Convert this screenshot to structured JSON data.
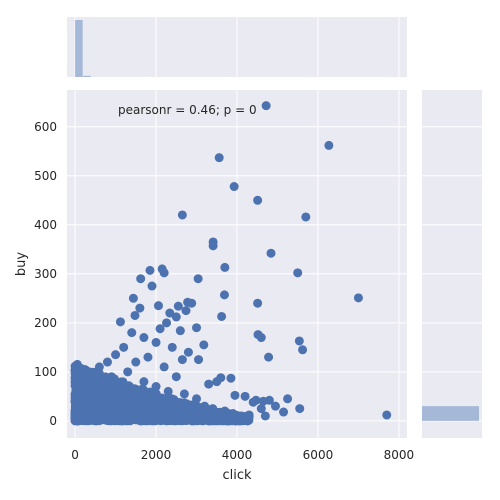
{
  "chart_data": {
    "type": "scatter",
    "title": "",
    "xlabel": "click",
    "ylabel": "buy",
    "annotation": "pearsonr = 0.46; p = 0",
    "xlim": [
      -200,
      8200
    ],
    "ylim": [
      -35,
      675
    ],
    "xticks": [
      0,
      2000,
      4000,
      6000,
      8000
    ],
    "yticks": [
      0,
      100,
      200,
      300,
      400,
      500,
      600
    ],
    "grid": true,
    "point_color": "#4c72b0",
    "marginal_color": "#a5b8d8",
    "background_color": "#eaeaf2",
    "points": [
      [
        4720,
        643
      ],
      [
        6270,
        562
      ],
      [
        3560,
        537
      ],
      [
        3930,
        478
      ],
      [
        4510,
        450
      ],
      [
        2650,
        420
      ],
      [
        5700,
        416
      ],
      [
        3410,
        365
      ],
      [
        3410,
        357
      ],
      [
        4840,
        342
      ],
      [
        3700,
        313
      ],
      [
        5500,
        302
      ],
      [
        2150,
        310
      ],
      [
        2200,
        302
      ],
      [
        3040,
        290
      ],
      [
        1620,
        290
      ],
      [
        1850,
        307
      ],
      [
        1900,
        275
      ],
      [
        3690,
        257
      ],
      [
        7000,
        251
      ],
      [
        1440,
        250
      ],
      [
        2780,
        242
      ],
      [
        2880,
        240
      ],
      [
        4510,
        240
      ],
      [
        2550,
        234
      ],
      [
        2060,
        235
      ],
      [
        1600,
        230
      ],
      [
        2740,
        225
      ],
      [
        1480,
        215
      ],
      [
        3620,
        213
      ],
      [
        1120,
        202
      ],
      [
        2500,
        212
      ],
      [
        2340,
        220
      ],
      [
        2260,
        200
      ],
      [
        3000,
        190
      ],
      [
        2100,
        188
      ],
      [
        4520,
        176
      ],
      [
        4600,
        170
      ],
      [
        2600,
        184
      ],
      [
        5540,
        163
      ],
      [
        5620,
        145
      ],
      [
        4780,
        130
      ],
      [
        3180,
        155
      ],
      [
        1400,
        180
      ],
      [
        1700,
        170
      ],
      [
        2000,
        160
      ],
      [
        2400,
        150
      ],
      [
        2800,
        140
      ],
      [
        2650,
        125
      ],
      [
        3050,
        125
      ],
      [
        3600,
        88
      ],
      [
        3850,
        87
      ],
      [
        3500,
        80
      ],
      [
        3300,
        75
      ],
      [
        3950,
        52
      ],
      [
        4200,
        50
      ],
      [
        4470,
        42
      ],
      [
        4650,
        40
      ],
      [
        4400,
        38
      ],
      [
        4800,
        42
      ],
      [
        5250,
        45
      ],
      [
        5150,
        18
      ],
      [
        5550,
        25
      ],
      [
        4950,
        30
      ],
      [
        4600,
        25
      ],
      [
        4700,
        10
      ],
      [
        4300,
        12
      ],
      [
        7700,
        12
      ],
      [
        1000,
        135
      ],
      [
        800,
        120
      ],
      [
        600,
        110
      ],
      [
        1200,
        150
      ],
      [
        900,
        90
      ],
      [
        1300,
        100
      ],
      [
        1500,
        120
      ],
      [
        1800,
        130
      ],
      [
        2200,
        110
      ],
      [
        2500,
        90
      ],
      [
        1100,
        70
      ],
      [
        1400,
        60
      ],
      [
        1700,
        80
      ],
      [
        2000,
        70
      ],
      [
        2300,
        60
      ],
      [
        2700,
        55
      ],
      [
        3000,
        45
      ],
      [
        3200,
        30
      ],
      [
        3400,
        25
      ],
      [
        3700,
        20
      ],
      [
        3900,
        15
      ],
      [
        4100,
        10
      ]
    ],
    "dense_region": {
      "description_points": "bulk cluster near origin",
      "x_max_at_y0": 4300,
      "y_max_at_x0": 110
    },
    "marginal_x": {
      "bins": [
        0,
        200,
        400
      ],
      "heights": [
        1.0,
        0.02
      ]
    },
    "marginal_y": {
      "bins": [
        0,
        30
      ],
      "widths": [
        1.0
      ]
    }
  }
}
